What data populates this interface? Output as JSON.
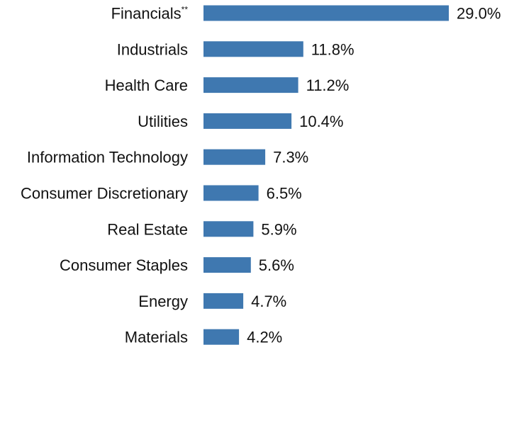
{
  "chart_data": {
    "type": "bar",
    "orientation": "horizontal",
    "categories": [
      "Financials",
      "Industrials",
      "Health Care",
      "Utilities",
      "Information Technology",
      "Consumer Discretionary",
      "Real Estate",
      "Consumer Staples",
      "Energy",
      "Materials"
    ],
    "category_superscripts": [
      "**",
      "",
      "",
      "",
      "",
      "",
      "",
      "",
      "",
      ""
    ],
    "values": [
      29.0,
      11.8,
      11.2,
      10.4,
      7.3,
      6.5,
      5.9,
      5.6,
      4.7,
      4.2
    ],
    "value_labels": [
      "29.0%",
      "11.8%",
      "11.2%",
      "10.4%",
      "7.3%",
      "6.5%",
      "5.9%",
      "5.6%",
      "4.7%",
      "4.2%"
    ],
    "xlim": [
      0,
      29.0
    ],
    "grid": false,
    "legend": "none",
    "colors": {
      "bar": "#3f78b0",
      "text": "#111111",
      "background": "#ffffff"
    }
  }
}
